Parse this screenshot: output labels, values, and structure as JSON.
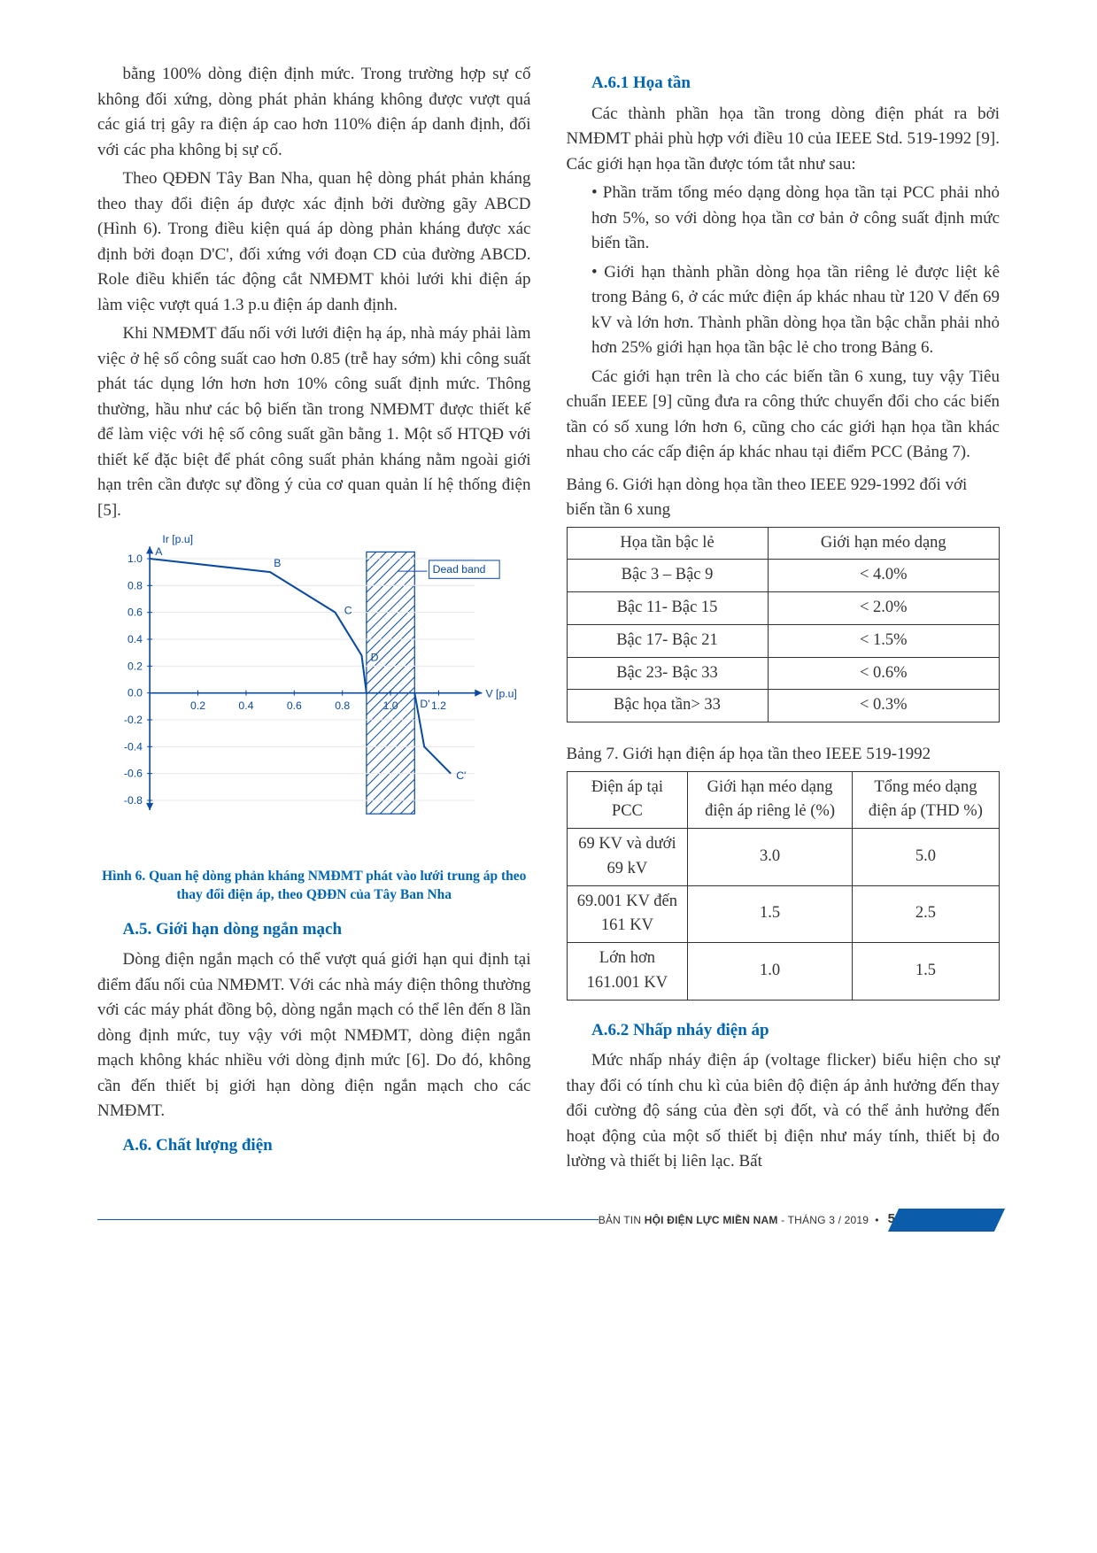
{
  "left": {
    "p1": "bằng 100% dòng điện định mức. Trong trường hợp sự cố không đối xứng, dòng phát phản kháng không được vượt quá các giá trị gây ra điện áp cao hơn 110% điện áp danh định, đối với các pha không bị sự cố.",
    "p2": "Theo QĐĐN Tây Ban Nha, quan hệ dòng phát phản kháng theo thay đổi điện áp được xác định bởi đường gãy ABCD (Hình 6). Trong điều kiện quá áp dòng phản kháng được xác định bởi đoạn D'C', đối xứng với đoạn CD của đường ABCD. Role điều khiển tác động cắt NMĐMT khỏi lưới khi điện áp làm việc vượt quá 1.3 p.u điện áp danh định.",
    "p3": "Khi NMĐMT đấu nối với lưới điện hạ áp, nhà máy phải làm việc ở hệ số công suất cao hơn 0.85 (trễ hay sớm) khi công suất phát tác dụng lớn hơn hơn 10% công suất định mức. Thông thường, hầu như các bộ biến tần trong NMĐMT được thiết kế để làm việc với hệ số công suất gần bằng 1. Một số HTQĐ với thiết kế đặc biệt để phát công suất phản kháng nằm ngoài giới hạn trên cần được sự đồng ý của cơ quan quản lí hệ thống điện [5].",
    "fig6_caption": "Hình 6. Quan hệ dòng phản kháng NMĐMT phát vào lưới trung áp theo thay đổi điện áp, theo QĐĐN của Tây Ban Nha",
    "h_a5": "A.5. Giới hạn dòng ngắn mạch",
    "p4": "Dòng điện ngắn mạch có thể vượt quá giới hạn qui định tại điểm đấu nối của NMĐMT. Với các nhà máy điện thông thường với các máy phát đồng bộ, dòng ngắn mạch có thể lên đến 8 lần dòng định mức, tuy vậy với một NMĐMT, dòng điện ngắn mạch không khác nhiều với dòng định mức [6]. Do đó, không cần đến thiết bị giới hạn dòng điện ngắn mạch cho các NMĐMT.",
    "h_a6": "A.6. Chất lượng điện"
  },
  "right": {
    "h_a61": "A.6.1 Họa tần",
    "p1": "Các thành phần họa tần trong dòng điện phát ra bởi NMĐMT phải phù hợp với điều 10 của IEEE Std. 519-1992 [9]. Các giới hạn họa tần được tóm tắt như sau:",
    "b1": "Phần trăm tổng méo dạng dòng họa tần tại PCC phải nhỏ hơn 5%, so với dòng họa tần cơ bản ở công suất định mức biến tần.",
    "b2": "Giới hạn thành phần dòng họa tần riêng lẻ được liệt kê trong Bảng 6, ở các mức điện áp khác nhau từ 120 V đến 69 kV và lớn hơn. Thành phần dòng họa tần bậc chẵn phải nhỏ hơn 25% giới hạn họa tần bậc lẻ cho trong Bảng 6.",
    "p2": "Các giới hạn trên là cho các biến tần 6 xung, tuy vậy Tiêu chuẩn IEEE [9] cũng đưa ra công thức chuyển đổi cho các biến tần có số xung lớn hơn 6, cũng cho các giới hạn họa tần khác nhau cho các cấp điện áp khác nhau tại điểm PCC (Bảng 7).",
    "t6_caption": "Bảng 6. Giới hạn dòng họa tần theo IEEE 929-1992 đối với biến tần 6 xung",
    "t6": {
      "h1": "Họa tần bậc lẻ",
      "h2": "Giới hạn méo dạng",
      "rows": [
        [
          "Bậc 3 – Bậc 9",
          "< 4.0%"
        ],
        [
          "Bậc 11- Bậc 15",
          "< 2.0%"
        ],
        [
          "Bậc 17- Bậc 21",
          "< 1.5%"
        ],
        [
          "Bậc 23- Bậc 33",
          "< 0.6%"
        ],
        [
          "Bậc họa tần> 33",
          "< 0.3%"
        ]
      ]
    },
    "t7_caption": "Bảng 7. Giới hạn điện áp họa tần theo IEEE 519-1992",
    "t7": {
      "h1": "Điện áp tại PCC",
      "h2": "Giới hạn méo dạng điện áp riêng lẻ (%)",
      "h3": "Tổng méo dạng điện áp (THD %)",
      "rows": [
        [
          "69 KV và dưới 69 kV",
          "3.0",
          "5.0"
        ],
        [
          "69.001 KV đến 161 KV",
          "1.5",
          "2.5"
        ],
        [
          "Lớn hơn 161.001 KV",
          "1.0",
          "1.5"
        ]
      ]
    },
    "h_a62": "A.6.2 Nhấp nháy điện áp",
    "p3": "Mức nhấp nháy điện áp (voltage flicker) biểu hiện cho sự thay đổi có tính chu kì của biên độ điện áp ảnh hưởng đến thay đổi cường độ sáng của đèn sợi đốt, và có thể ảnh hưởng đến hoạt động của một số thiết bị điện như máy tính, thiết bị đo lường và thiết bị liên lạc. Bất"
  },
  "chart": {
    "type": "line",
    "ylabel": "Ir [p.u]",
    "xlabel": "V [p.u]",
    "dead_band_label": "Dead band",
    "pointsA": [
      [
        0,
        1.0
      ],
      [
        0.5,
        0.9
      ],
      [
        0.77,
        0.6
      ],
      [
        0.88,
        0.28
      ],
      [
        0.9,
        0
      ]
    ],
    "pointsC": [
      [
        1.1,
        0
      ],
      [
        1.14,
        -0.4
      ],
      [
        1.25,
        -0.6
      ]
    ],
    "labels": {
      "A": "A",
      "B": "B",
      "C": "C",
      "D": "D",
      "Dp": "D'",
      "Cp": "C'"
    },
    "xticks": [
      0.2,
      0.4,
      0.6,
      0.8,
      1.0,
      1.2
    ],
    "yticks": [
      1.0,
      0.8,
      0.6,
      0.4,
      0.2,
      0.0,
      -0.2,
      -0.4,
      -0.6,
      -0.8
    ],
    "band_x": [
      0.9,
      1.1
    ],
    "colors": {
      "axis": "#0a4aa0",
      "line": "#0a4aa0",
      "label": "#0a4aa0",
      "bg": "#ffffff"
    },
    "font_size": 12
  },
  "footer": {
    "left": "BẢN TIN",
    "mid": "HỘI ĐIỆN LỰC MIỀN NAM",
    "right": "- THÁNG 3 / 2019",
    "page": "5"
  }
}
